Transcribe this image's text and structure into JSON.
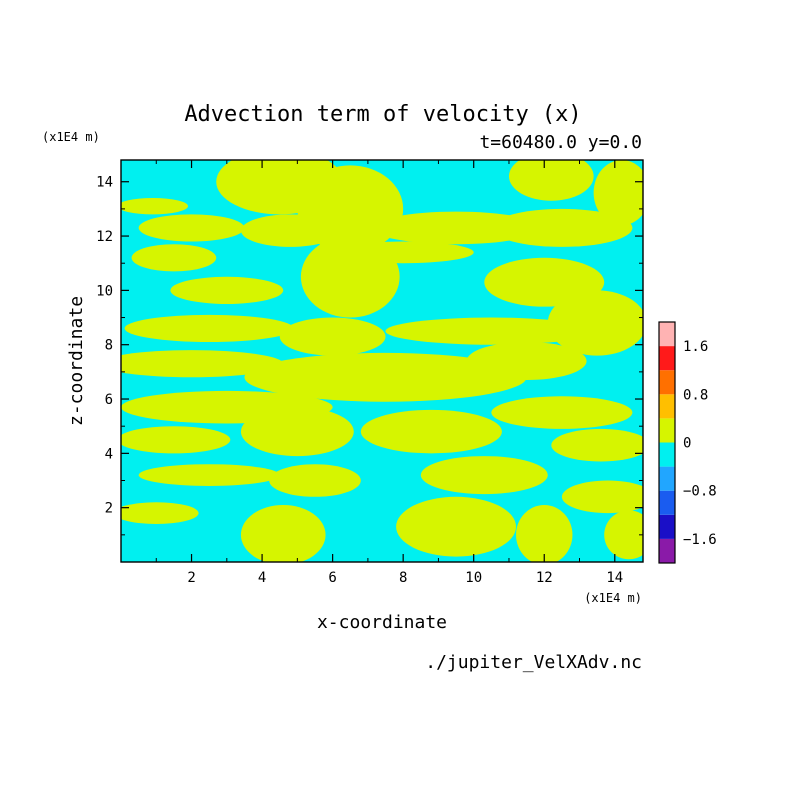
{
  "chart_data": {
    "type": "heatmap",
    "title": "Advection term of velocity (x)",
    "subtitle": "t=60480.0 y=0.0",
    "xlabel": "x-coordinate",
    "ylabel": "z-coordinate",
    "x_unit": "(x1E4 m)",
    "y_unit": "(x1E4 m)",
    "xlim": [
      0,
      14.8
    ],
    "ylim": [
      0,
      14.8
    ],
    "x_ticks": [
      2,
      4,
      6,
      8,
      10,
      12,
      14
    ],
    "y_ticks": [
      2,
      4,
      6,
      8,
      10,
      12,
      14
    ],
    "grid": false,
    "colorbar": {
      "levels": [
        -2.0,
        -1.6,
        -1.2,
        -0.8,
        -0.4,
        0,
        0.4,
        0.8,
        1.2,
        1.6,
        2.0
      ],
      "colors": [
        "#8a1aa8",
        "#1a0fc7",
        "#1a5cf0",
        "#21a6ff",
        "#00f0f0",
        "#d6f500",
        "#ffbf00",
        "#ff7000",
        "#ff1a1a",
        "#ffb3b3"
      ],
      "tick_labels": [
        "1.6",
        "0.8",
        "0",
        "−0.8",
        "−1.6"
      ],
      "tick_values": [
        1.6,
        0.8,
        0,
        -0.8,
        -1.6
      ]
    },
    "field_levels": {
      "negative": "#00f0f0",
      "positive": "#d6f500"
    },
    "blobs": [
      {
        "x": 4.5,
        "z": 14.0,
        "rx": 1.8,
        "rz": 1.2
      },
      {
        "x": 6.5,
        "z": 13.0,
        "rx": 1.5,
        "rz": 1.6
      },
      {
        "x": 12.2,
        "z": 14.2,
        "rx": 1.2,
        "rz": 0.9
      },
      {
        "x": 14.2,
        "z": 13.6,
        "rx": 0.8,
        "rz": 1.2
      },
      {
        "x": 0.9,
        "z": 13.1,
        "rx": 1.0,
        "rz": 0.3
      },
      {
        "x": 2.0,
        "z": 12.3,
        "rx": 1.5,
        "rz": 0.5
      },
      {
        "x": 4.8,
        "z": 12.2,
        "rx": 1.4,
        "rz": 0.6
      },
      {
        "x": 9.5,
        "z": 12.3,
        "rx": 2.4,
        "rz": 0.6
      },
      {
        "x": 12.5,
        "z": 12.3,
        "rx": 2.0,
        "rz": 0.7
      },
      {
        "x": 1.5,
        "z": 11.2,
        "rx": 1.2,
        "rz": 0.5
      },
      {
        "x": 6.5,
        "z": 10.5,
        "rx": 1.4,
        "rz": 1.5
      },
      {
        "x": 8.0,
        "z": 11.4,
        "rx": 2.0,
        "rz": 0.4
      },
      {
        "x": 3.0,
        "z": 10.0,
        "rx": 1.6,
        "rz": 0.5
      },
      {
        "x": 12.0,
        "z": 10.3,
        "rx": 1.7,
        "rz": 0.9
      },
      {
        "x": 2.5,
        "z": 8.6,
        "rx": 2.4,
        "rz": 0.5
      },
      {
        "x": 6.0,
        "z": 8.3,
        "rx": 1.5,
        "rz": 0.7
      },
      {
        "x": 10.5,
        "z": 8.5,
        "rx": 3.0,
        "rz": 0.5
      },
      {
        "x": 13.5,
        "z": 8.8,
        "rx": 1.4,
        "rz": 1.2
      },
      {
        "x": 2.0,
        "z": 7.3,
        "rx": 2.6,
        "rz": 0.5
      },
      {
        "x": 7.5,
        "z": 6.8,
        "rx": 4.0,
        "rz": 0.9
      },
      {
        "x": 11.5,
        "z": 7.4,
        "rx": 1.7,
        "rz": 0.7
      },
      {
        "x": 3.0,
        "z": 5.7,
        "rx": 3.0,
        "rz": 0.6
      },
      {
        "x": 12.5,
        "z": 5.5,
        "rx": 2.0,
        "rz": 0.6
      },
      {
        "x": 1.5,
        "z": 4.5,
        "rx": 1.6,
        "rz": 0.5
      },
      {
        "x": 5.0,
        "z": 4.8,
        "rx": 1.6,
        "rz": 0.9
      },
      {
        "x": 8.8,
        "z": 4.8,
        "rx": 2.0,
        "rz": 0.8
      },
      {
        "x": 13.6,
        "z": 4.3,
        "rx": 1.4,
        "rz": 0.6
      },
      {
        "x": 2.5,
        "z": 3.2,
        "rx": 2.0,
        "rz": 0.4
      },
      {
        "x": 5.5,
        "z": 3.0,
        "rx": 1.3,
        "rz": 0.6
      },
      {
        "x": 10.3,
        "z": 3.2,
        "rx": 1.8,
        "rz": 0.7
      },
      {
        "x": 13.8,
        "z": 2.4,
        "rx": 1.3,
        "rz": 0.6
      },
      {
        "x": 1.0,
        "z": 1.8,
        "rx": 1.2,
        "rz": 0.4
      },
      {
        "x": 4.6,
        "z": 1.0,
        "rx": 1.2,
        "rz": 1.1
      },
      {
        "x": 9.5,
        "z": 1.3,
        "rx": 1.7,
        "rz": 1.1
      },
      {
        "x": 12.0,
        "z": 1.0,
        "rx": 0.8,
        "rz": 1.1
      },
      {
        "x": 14.4,
        "z": 1.0,
        "rx": 0.7,
        "rz": 0.9
      }
    ]
  },
  "footer": {
    "source_file": "./jupiter_VelXAdv.nc"
  }
}
